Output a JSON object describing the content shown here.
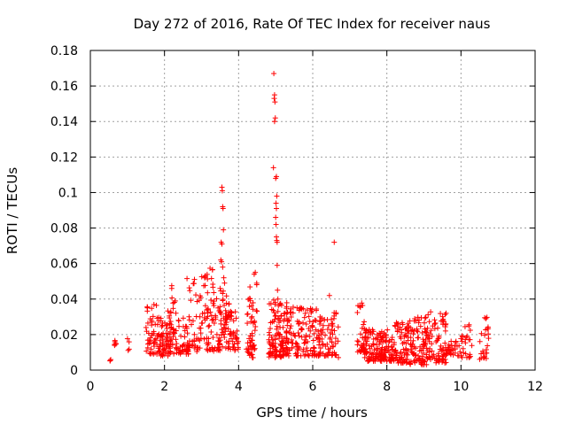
{
  "chart_data": {
    "type": "scatter",
    "title": "Day 272 of 2016, Rate Of TEC Index for receiver naus",
    "xlabel": "GPS time / hours",
    "ylabel": "ROTI / TECUs",
    "xlim": [
      0,
      12
    ],
    "ylim": [
      0,
      0.18
    ],
    "xticks": [
      "0",
      "2",
      "4",
      "6",
      "8",
      "10",
      "12"
    ],
    "yticks": [
      "0",
      "0.02",
      "0.04",
      "0.06",
      "0.08",
      "0.1",
      "0.12",
      "0.14",
      "0.16",
      "0.18"
    ],
    "grid": true,
    "marker": "+",
    "marker_color": "#ff0000",
    "clusters": [
      {
        "x": [
          0.5,
          0.55
        ],
        "y": [
          0.005,
          0.006
        ],
        "n": 3
      },
      {
        "x": [
          0.55,
          0.7
        ],
        "y": [
          0.012,
          0.019
        ],
        "n": 6
      },
      {
        "x": [
          1.0,
          1.1
        ],
        "y": [
          0.011,
          0.021
        ],
        "n": 4
      },
      {
        "x": [
          1.5,
          1.8
        ],
        "y": [
          0.009,
          0.039
        ],
        "n": 45
      },
      {
        "x": [
          1.8,
          2.2
        ],
        "y": [
          0.008,
          0.034
        ],
        "n": 70
      },
      {
        "x": [
          2.0,
          2.3
        ],
        "y": [
          0.009,
          0.048
        ],
        "n": 30
      },
      {
        "x": [
          2.3,
          2.65
        ],
        "y": [
          0.009,
          0.033
        ],
        "n": 45
      },
      {
        "x": [
          2.6,
          2.9
        ],
        "y": [
          0.01,
          0.053
        ],
        "n": 35
      },
      {
        "x": [
          2.9,
          3.3
        ],
        "y": [
          0.011,
          0.058
        ],
        "n": 60
      },
      {
        "x": [
          3.3,
          3.55
        ],
        "y": [
          0.01,
          0.05
        ],
        "n": 40
      },
      {
        "x": [
          3.55,
          3.75
        ],
        "y": [
          0.01,
          0.045
        ],
        "n": 40
      },
      {
        "x": [
          3.75,
          4.0
        ],
        "y": [
          0.011,
          0.033
        ],
        "n": 35
      },
      {
        "x": [
          4.2,
          4.5
        ],
        "y": [
          0.007,
          0.05
        ],
        "n": 55
      },
      {
        "x": [
          4.8,
          5.3
        ],
        "y": [
          0.007,
          0.04
        ],
        "n": 120
      },
      {
        "x": [
          5.3,
          5.75
        ],
        "y": [
          0.008,
          0.036
        ],
        "n": 70
      },
      {
        "x": [
          5.75,
          6.1
        ],
        "y": [
          0.008,
          0.035
        ],
        "n": 50
      },
      {
        "x": [
          6.1,
          6.55
        ],
        "y": [
          0.008,
          0.03
        ],
        "n": 55
      },
      {
        "x": [
          6.5,
          6.7
        ],
        "y": [
          0.007,
          0.034
        ],
        "n": 25
      },
      {
        "x": [
          7.2,
          7.45
        ],
        "y": [
          0.01,
          0.038
        ],
        "n": 40
      },
      {
        "x": [
          7.4,
          8.2
        ],
        "y": [
          0.005,
          0.023
        ],
        "n": 150
      },
      {
        "x": [
          8.2,
          8.6
        ],
        "y": [
          0.004,
          0.027
        ],
        "n": 70
      },
      {
        "x": [
          8.6,
          9.1
        ],
        "y": [
          0.003,
          0.03
        ],
        "n": 90
      },
      {
        "x": [
          9.1,
          9.6
        ],
        "y": [
          0.004,
          0.033
        ],
        "n": 80
      },
      {
        "x": [
          9.6,
          10.0
        ],
        "y": [
          0.008,
          0.018
        ],
        "n": 30
      },
      {
        "x": [
          10.0,
          10.3
        ],
        "y": [
          0.007,
          0.029
        ],
        "n": 25
      },
      {
        "x": [
          10.5,
          10.75
        ],
        "y": [
          0.006,
          0.03
        ],
        "n": 25
      }
    ],
    "points": [
      [
        3.55,
        0.103
      ],
      [
        3.56,
        0.101
      ],
      [
        3.57,
        0.092
      ],
      [
        3.58,
        0.091
      ],
      [
        3.59,
        0.079
      ],
      [
        3.53,
        0.072
      ],
      [
        3.55,
        0.071
      ],
      [
        3.52,
        0.062
      ],
      [
        3.54,
        0.061
      ],
      [
        3.57,
        0.058
      ],
      [
        3.6,
        0.052
      ],
      [
        3.62,
        0.049
      ],
      [
        3.5,
        0.046
      ],
      [
        4.95,
        0.167
      ],
      [
        4.97,
        0.155
      ],
      [
        4.96,
        0.153
      ],
      [
        4.98,
        0.151
      ],
      [
        4.99,
        0.142
      ],
      [
        4.97,
        0.14
      ],
      [
        4.94,
        0.114
      ],
      [
        5.02,
        0.109
      ],
      [
        5.0,
        0.108
      ],
      [
        5.03,
        0.098
      ],
      [
        5.01,
        0.094
      ],
      [
        5.02,
        0.091
      ],
      [
        5.0,
        0.086
      ],
      [
        5.01,
        0.082
      ],
      [
        5.02,
        0.075
      ],
      [
        5.03,
        0.073
      ],
      [
        5.04,
        0.072
      ],
      [
        5.04,
        0.059
      ],
      [
        5.05,
        0.045
      ],
      [
        5.06,
        0.04
      ],
      [
        6.58,
        0.072
      ],
      [
        6.45,
        0.042
      ],
      [
        4.45,
        0.055
      ],
      [
        4.42,
        0.054
      ]
    ]
  }
}
